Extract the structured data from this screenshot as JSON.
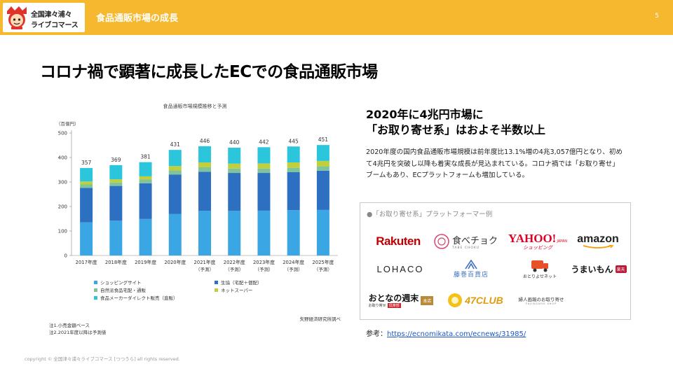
{
  "header": {
    "logo_line1": "全国津々浦々",
    "logo_line2": "ライブコマース",
    "title": "食品通販市場の成長",
    "page_number": "5",
    "bar_color": "#f5b82e"
  },
  "slide_title": "コロナ禍で顕著に成長したECでの食品通販市場",
  "headline": {
    "line1": "2020年に4兆円市場に",
    "line2": "「お取り寄せ系」はおよそ半数以上"
  },
  "body_text": "2020年度の国内食品通販市場規模は前年度比13.1%増の4兆3,057億円となり、初めて4兆円を突破し以降も着実な成長が見込まれている。コロナ禍では「お取り寄せ」ブームもあり、ECプラットフォームも増加している。",
  "platforms": {
    "caption": "●「お取り寄せ系」プラットフォーマー例",
    "items": [
      {
        "name": "Rakuten",
        "icon": "rakuten-logo"
      },
      {
        "name": "食べチョク",
        "sub": "TABE CHOKU",
        "icon": "tabechoku-logo"
      },
      {
        "name": "YAHOO!",
        "sub": "JAPAN",
        "sub2": "ショッピング",
        "icon": "yahoo-shopping-logo"
      },
      {
        "name": "amazon",
        "icon": "amazon-logo"
      },
      {
        "name": "LOHACO",
        "icon": "lohaco-logo"
      },
      {
        "name": "藤巻百貨店",
        "icon": "fujimaki-logo"
      },
      {
        "name": "おとりよせネット",
        "icon": "otoriyose-net-logo"
      },
      {
        "name": "うまいもん",
        "badge": "楽天",
        "icon": "umaimon-logo"
      },
      {
        "name": "おとなの週末",
        "sub": "お取り寄せ",
        "sub2": "倶楽部",
        "badge": "本店",
        "icon": "otonano-shumatsu-logo"
      },
      {
        "name": "47CLUB",
        "icon": "47club-logo"
      },
      {
        "name": "婦人画報のお取り寄せ",
        "sub": "FUJINGAHO SHOP",
        "icon": "fujingaho-logo"
      }
    ]
  },
  "reference": {
    "label": "参考：",
    "url": "https://ecnomikata.com/ecnews/31985/"
  },
  "copyright": "copyright © 全国津々浦々ライブコマース [つつうら] all rights reserved.",
  "chart_data": {
    "type": "bar",
    "stacked": true,
    "title": "食品通販市場規模推移と予測",
    "unit_label": "（百億円）",
    "categories": [
      "2017年度",
      "2018年度",
      "2019年度",
      "2020年度",
      "2021年度",
      "2022年度",
      "2023年度",
      "2024年度",
      "2025年度"
    ],
    "category_notes": [
      "",
      "",
      "",
      "",
      "（予測）",
      "（予測）",
      "（予測）",
      "（予測）",
      "（予測）"
    ],
    "totals": [
      357,
      369,
      381,
      431,
      446,
      440,
      442,
      445,
      451
    ],
    "series": [
      {
        "name": "ショッピングサイト",
        "color": "#3aa6e4",
        "values": [
          135,
          142,
          149,
          170,
          182,
          182,
          183,
          185,
          186
        ]
      },
      {
        "name": "生協（宅配＋個配）",
        "color": "#2d6fc0",
        "values": [
          141,
          142,
          146,
          160,
          160,
          155,
          154,
          155,
          160
        ]
      },
      {
        "name": "自然派食品宅配・通販",
        "color": "#7fc49a",
        "values": [
          14,
          14,
          15,
          17,
          18,
          18,
          18,
          18,
          18
        ]
      },
      {
        "name": "ネットスーパー",
        "color": "#c2cf3c",
        "values": [
          12,
          13,
          13,
          18,
          20,
          20,
          21,
          22,
          22
        ]
      },
      {
        "name": "食品メーカーダイレクト販売（直販）",
        "color": "#2bc6dc",
        "values": [
          55,
          58,
          58,
          66,
          66,
          65,
          66,
          65,
          65
        ]
      }
    ],
    "ylim": [
      0,
      500
    ],
    "yticks": [
      0,
      100,
      200,
      300,
      400,
      500
    ],
    "grid": false,
    "legend_position": "bottom",
    "notes": [
      "注1.小売金額ベース",
      "注2.2021年度以降は予測値"
    ],
    "source": "矢野経済研究所調べ"
  }
}
